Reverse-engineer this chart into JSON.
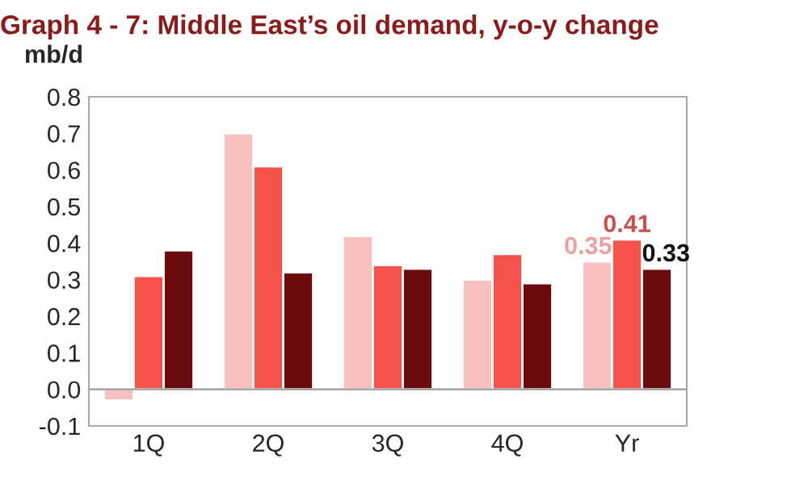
{
  "chart_data": {
    "type": "bar",
    "title": "Graph 4 - 7: Middle East’s oil demand, y-o-y change",
    "ylabel": "mb/d",
    "categories": [
      "1Q",
      "2Q",
      "3Q",
      "4Q",
      "Yr"
    ],
    "series": [
      {
        "color": "#f9c0c0",
        "values": [
          -0.03,
          0.7,
          0.42,
          0.3,
          0.35
        ],
        "value_labels": [
          null,
          null,
          null,
          null,
          "0.35"
        ]
      },
      {
        "color": "#f6524a",
        "values": [
          0.31,
          0.61,
          0.34,
          0.37,
          0.41
        ],
        "value_labels": [
          null,
          null,
          null,
          null,
          "0.41"
        ]
      },
      {
        "color": "#6b0a0a",
        "values": [
          0.38,
          0.32,
          0.33,
          0.29,
          0.33
        ],
        "value_labels": [
          null,
          null,
          null,
          null,
          "0.33"
        ]
      }
    ],
    "ylim": [
      -0.1,
      0.8
    ],
    "yticks": [
      {
        "value": -0.1,
        "label": "-0.1"
      },
      {
        "value": 0,
        "label": "0.0"
      },
      0.1,
      0.2,
      0.3,
      0.4,
      0.5,
      0.6,
      0.7,
      0.8
    ],
    "ref_lines": [
      {
        "axis": "y",
        "value": 0,
        "color": "#999999"
      }
    ],
    "grid": false,
    "legend": false
  }
}
